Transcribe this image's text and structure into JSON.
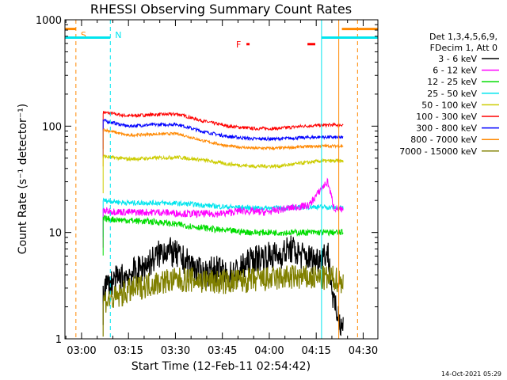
{
  "chart_data": {
    "type": "line",
    "title": "RHESSI Observing Summary Count Rates",
    "xlabel": "Start Time (12-Feb-11 02:54:42)",
    "ylabel": "Count Rate (s⁻¹ detector⁻¹)",
    "yscale": "log",
    "ylim": [
      1,
      1000
    ],
    "xlim_minutes": [
      0,
      100
    ],
    "x_ticks": [
      {
        "label": "03:00",
        "t": 5.3
      },
      {
        "label": "03:15",
        "t": 20.3
      },
      {
        "label": "03:30",
        "t": 35.3
      },
      {
        "label": "03:45",
        "t": 50.3
      },
      {
        "label": "04:00",
        "t": 65.3
      },
      {
        "label": "04:15",
        "t": 80.3
      },
      {
        "label": "04:30",
        "t": 95.3
      }
    ],
    "y_ticks": [
      {
        "label": "1",
        "v": 1
      },
      {
        "label": "10",
        "v": 10
      },
      {
        "label": "100",
        "v": 100
      },
      {
        "label": "1000",
        "v": 1000
      }
    ],
    "legend": {
      "position": "top-right",
      "header_line1": "Det 1,3,4,5,6,9,",
      "header_line2": "FDecim 1, Att 0",
      "entries": [
        {
          "label": "3 - 6 keV",
          "color": "#000000"
        },
        {
          "label": "6 - 12 keV",
          "color": "#ff00ff"
        },
        {
          "label": "12 - 25 keV",
          "color": "#00dd00"
        },
        {
          "label": "25 - 50 keV",
          "color": "#00e5ee"
        },
        {
          "label": "50 - 100 keV",
          "color": "#cccc00"
        },
        {
          "label": "100 - 300 keV",
          "color": "#ff0000"
        },
        {
          "label": "300 - 800 keV",
          "color": "#0000ff"
        },
        {
          "label": "800 - 7000 keV",
          "color": "#ff8800"
        },
        {
          "label": "7000 - 15000 keV",
          "color": "#808000"
        }
      ]
    },
    "t_start": 12.2,
    "t_end": 89.0,
    "series": [
      {
        "name": "100 - 300 keV",
        "color": "#ff0000",
        "t": [
          12.2,
          20,
          28,
          36,
          44,
          52,
          60,
          68,
          76,
          82,
          89
        ],
        "v": [
          135,
          125,
          128,
          130,
          112,
          100,
          95,
          95,
          100,
          102,
          103
        ]
      },
      {
        "name": "300 - 800 keV",
        "color": "#0000ff",
        "t": [
          12.2,
          20,
          28,
          36,
          44,
          52,
          60,
          68,
          76,
          82,
          89
        ],
        "v": [
          113,
          100,
          103,
          104,
          89,
          80,
          76,
          76,
          78,
          79,
          78
        ]
      },
      {
        "name": "800 - 7000 keV",
        "color": "#ff8800",
        "t": [
          12.2,
          20,
          28,
          36,
          44,
          52,
          60,
          68,
          76,
          82,
          89
        ],
        "v": [
          93,
          82,
          84,
          85,
          73,
          65,
          62,
          62,
          64,
          65,
          65
        ]
      },
      {
        "name": "50 - 100 keV",
        "color": "#cccc00",
        "t": [
          12.2,
          20,
          28,
          36,
          44,
          52,
          60,
          68,
          76,
          82,
          89
        ],
        "v": [
          52,
          49,
          50,
          51,
          48,
          44,
          42,
          42,
          45,
          47,
          47
        ]
      },
      {
        "name": "25 - 50 keV",
        "color": "#00e5ee",
        "t": [
          12.2,
          20,
          30,
          40,
          50,
          60,
          70,
          80,
          89
        ],
        "v": [
          20,
          19,
          19,
          18.5,
          17.5,
          17,
          17,
          17.5,
          17
        ]
      },
      {
        "name": "6 - 12 keV",
        "color": "#ff00ff",
        "t": [
          12.2,
          20,
          30,
          40,
          50,
          56,
          64,
          72,
          78,
          82,
          84,
          86,
          89
        ],
        "v": [
          16,
          15.5,
          15.5,
          15,
          15,
          16,
          15.5,
          17,
          18,
          26,
          30,
          17,
          16
        ]
      },
      {
        "name": "12 - 25 keV",
        "color": "#00dd00",
        "t": [
          12.2,
          20,
          30,
          40,
          50,
          60,
          70,
          80,
          89
        ],
        "v": [
          13.5,
          13,
          12.5,
          11.5,
          10.5,
          10,
          10,
          10,
          10
        ]
      },
      {
        "name": "3 - 6 keV",
        "color": "#000000",
        "t": [
          12.2,
          16,
          20,
          24,
          28,
          32,
          36,
          40,
          44,
          48,
          52,
          56,
          60,
          64,
          68,
          72,
          76,
          80,
          84,
          86,
          89
        ],
        "v": [
          3,
          3.5,
          4,
          4.5,
          5.5,
          7,
          6,
          5,
          4,
          4.5,
          3.8,
          4.5,
          5.5,
          6,
          6,
          7,
          6,
          5.5,
          6.5,
          2,
          1.3
        ]
      },
      {
        "name": "7000 - 15000 keV",
        "color": "#808000",
        "t": [
          12.2,
          16,
          20,
          26,
          32,
          40,
          48,
          56,
          64,
          72,
          80,
          86,
          89
        ],
        "v": [
          2.3,
          2.4,
          2.8,
          3.2,
          3.5,
          3.6,
          3.4,
          3.5,
          3.6,
          3.8,
          3.7,
          3.7,
          3.4
        ]
      }
    ],
    "markers": [
      {
        "label": "S",
        "t": 3.5,
        "color": "#ff8800",
        "style": "dashed"
      },
      {
        "label": "N",
        "t": 14.5,
        "color": "#00e5ee",
        "style": "dashed"
      },
      {
        "label": "",
        "t": 93.5,
        "color": "#ff8800",
        "style": "dashed"
      },
      {
        "label": "",
        "t": 82.0,
        "color": "#00e5ee",
        "style": "solid"
      },
      {
        "label": "",
        "t": 87.5,
        "color": "#ff8800",
        "style": "solid"
      }
    ],
    "top_bars": [
      {
        "color": "#ff8800",
        "t0": 0,
        "t1": 3.5,
        "v": 820
      },
      {
        "color": "#00e5ee",
        "t0": 0,
        "t1": 14.5,
        "v": 680
      },
      {
        "color": "#00e5ee",
        "t0": 82,
        "t1": 100,
        "v": 680
      },
      {
        "color": "#ff8800",
        "t0": 88.5,
        "t1": 100,
        "v": 820
      }
    ],
    "flare": {
      "label": "F",
      "color": "#ff0000",
      "t": 55.5,
      "v": 590,
      "segments": [
        {
          "t0": 58.0,
          "t1": 59.0
        },
        {
          "t0": 77.5,
          "t1": 80.0
        }
      ]
    }
  },
  "footer": {
    "date": "14-Oct-2021 05:29"
  }
}
